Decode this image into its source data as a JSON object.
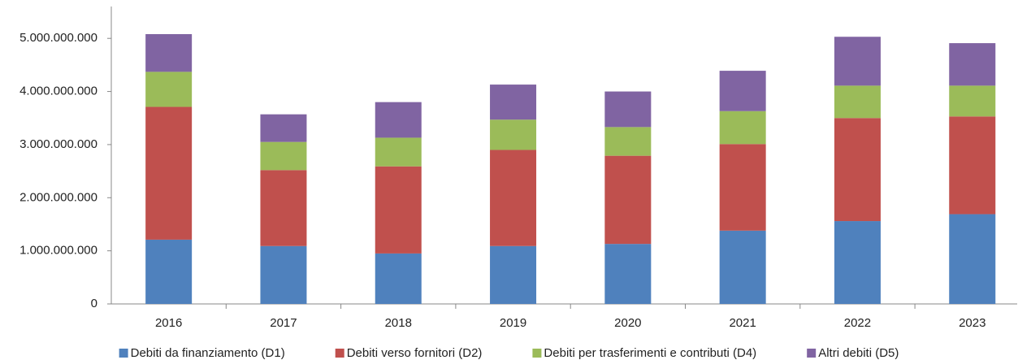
{
  "chart_data": {
    "type": "stacked_bar",
    "categories": [
      "2016",
      "2017",
      "2018",
      "2019",
      "2020",
      "2021",
      "2022",
      "2023"
    ],
    "series": [
      {
        "name": "Debiti da finanziamento (D1)",
        "color": "#4f81bd",
        "values": [
          1210000000,
          1090000000,
          950000000,
          1090000000,
          1130000000,
          1380000000,
          1560000000,
          1690000000
        ]
      },
      {
        "name": "Debiti verso fornitori (D2)",
        "color": "#c0504d",
        "values": [
          2500000000,
          1430000000,
          1640000000,
          1810000000,
          1660000000,
          1630000000,
          1940000000,
          1840000000
        ]
      },
      {
        "name": "Debiti per trasferimenti e contributi (D4)",
        "color": "#9bbb59",
        "values": [
          660000000,
          530000000,
          540000000,
          570000000,
          540000000,
          620000000,
          610000000,
          580000000
        ]
      },
      {
        "name": "Altri debiti (D5)",
        "color": "#8064a2",
        "values": [
          710000000,
          520000000,
          670000000,
          660000000,
          670000000,
          760000000,
          920000000,
          800000000
        ]
      }
    ],
    "ylim": [
      0,
      5600000000
    ],
    "yticks": [
      0,
      {
        "value": 1000000000,
        "label": "1.000.000.000"
      },
      {
        "value": 2000000000,
        "label": "2.000.000.000"
      },
      {
        "value": 3000000000,
        "label": "3.000.000.000"
      },
      {
        "value": 4000000000,
        "label": "4.000.000.000"
      },
      {
        "value": 5000000000,
        "label": "5.000.000.000"
      }
    ],
    "legend": "bottom"
  }
}
